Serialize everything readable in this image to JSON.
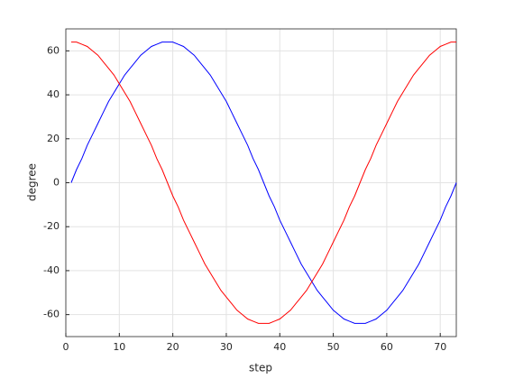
{
  "chart_data": {
    "type": "line",
    "xlabel": "step",
    "ylabel": "degree",
    "x": [
      1,
      2,
      3,
      4,
      5,
      6,
      7,
      8,
      9,
      10,
      11,
      12,
      13,
      14,
      15,
      16,
      17,
      18,
      19,
      20,
      21,
      22,
      23,
      24,
      25,
      26,
      27,
      28,
      29,
      30,
      31,
      32,
      33,
      34,
      35,
      36,
      37,
      38,
      39,
      40,
      41,
      42,
      43,
      44,
      45,
      46,
      47,
      48,
      49,
      50,
      51,
      52,
      53,
      54,
      55,
      56,
      57,
      58,
      59,
      60,
      61,
      62,
      63,
      64,
      65,
      66,
      67,
      68,
      69,
      70,
      71,
      72,
      73
    ],
    "series": [
      {
        "color": "#0000ff",
        "values": [
          0,
          6,
          11,
          17,
          22,
          27,
          32,
          37,
          41,
          45,
          49,
          52,
          55,
          58,
          60,
          62,
          63,
          64,
          64,
          64,
          63,
          62,
          60,
          58,
          55,
          52,
          49,
          45,
          41,
          37,
          32,
          27,
          22,
          17,
          11,
          6,
          0,
          -6,
          -11,
          -17,
          -22,
          -27,
          -32,
          -37,
          -41,
          -45,
          -49,
          -52,
          -55,
          -58,
          -60,
          -62,
          -63,
          -64,
          -64,
          -64,
          -63,
          -62,
          -60,
          -58,
          -55,
          -52,
          -49,
          -45,
          -41,
          -37,
          -32,
          -27,
          -22,
          -17,
          -11,
          -6,
          0
        ]
      },
      {
        "color": "#ff0000",
        "values": [
          64,
          64,
          63,
          62,
          60,
          58,
          55,
          52,
          49,
          45,
          41,
          37,
          32,
          27,
          22,
          17,
          11,
          6,
          0,
          -6,
          -11,
          -17,
          -22,
          -27,
          -32,
          -37,
          -41,
          -45,
          -49,
          -52,
          -55,
          -58,
          -60,
          -62,
          -63,
          -64,
          -64,
          -64,
          -63,
          -62,
          -60,
          -58,
          -55,
          -52,
          -49,
          -45,
          -41,
          -37,
          -32,
          -27,
          -22,
          -17,
          -11,
          -6,
          0,
          6,
          11,
          17,
          22,
          27,
          32,
          37,
          41,
          45,
          49,
          52,
          55,
          58,
          60,
          62,
          63,
          64,
          64
        ]
      }
    ],
    "xlim": [
      0,
      73
    ],
    "xticks": [
      0,
      10,
      20,
      30,
      40,
      50,
      60,
      70
    ],
    "ylim": [
      -70,
      70
    ],
    "yticks": [
      -60,
      -40,
      -20,
      0,
      20,
      40,
      60
    ],
    "grid": true
  }
}
